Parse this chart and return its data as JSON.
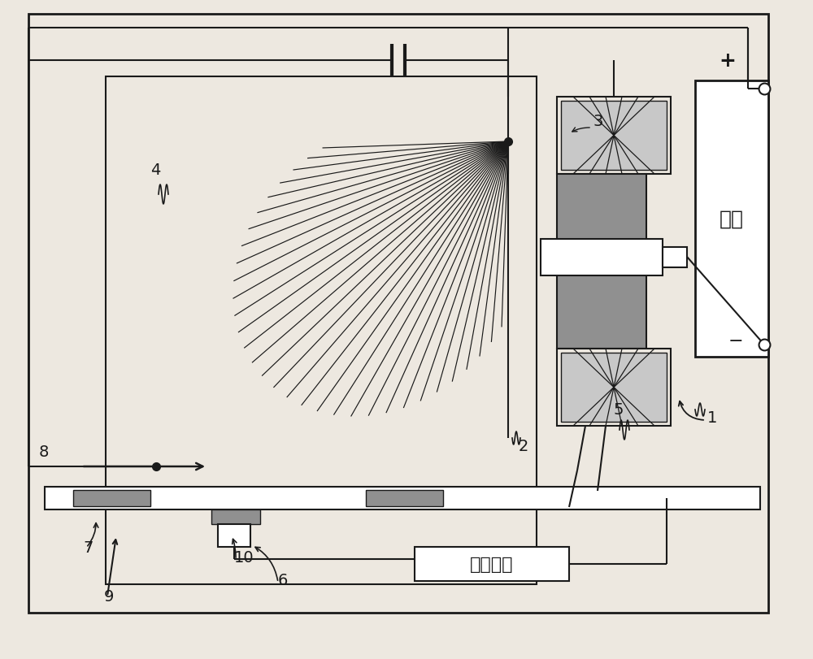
{
  "bg_color": "#ede8e0",
  "line_color": "#1a1a1a",
  "gray_fill": "#909090",
  "light_gray": "#c8c8c8",
  "white": "#ffffff",
  "fig_w": 10.0,
  "fig_h": 8.12,
  "dpi": 100
}
